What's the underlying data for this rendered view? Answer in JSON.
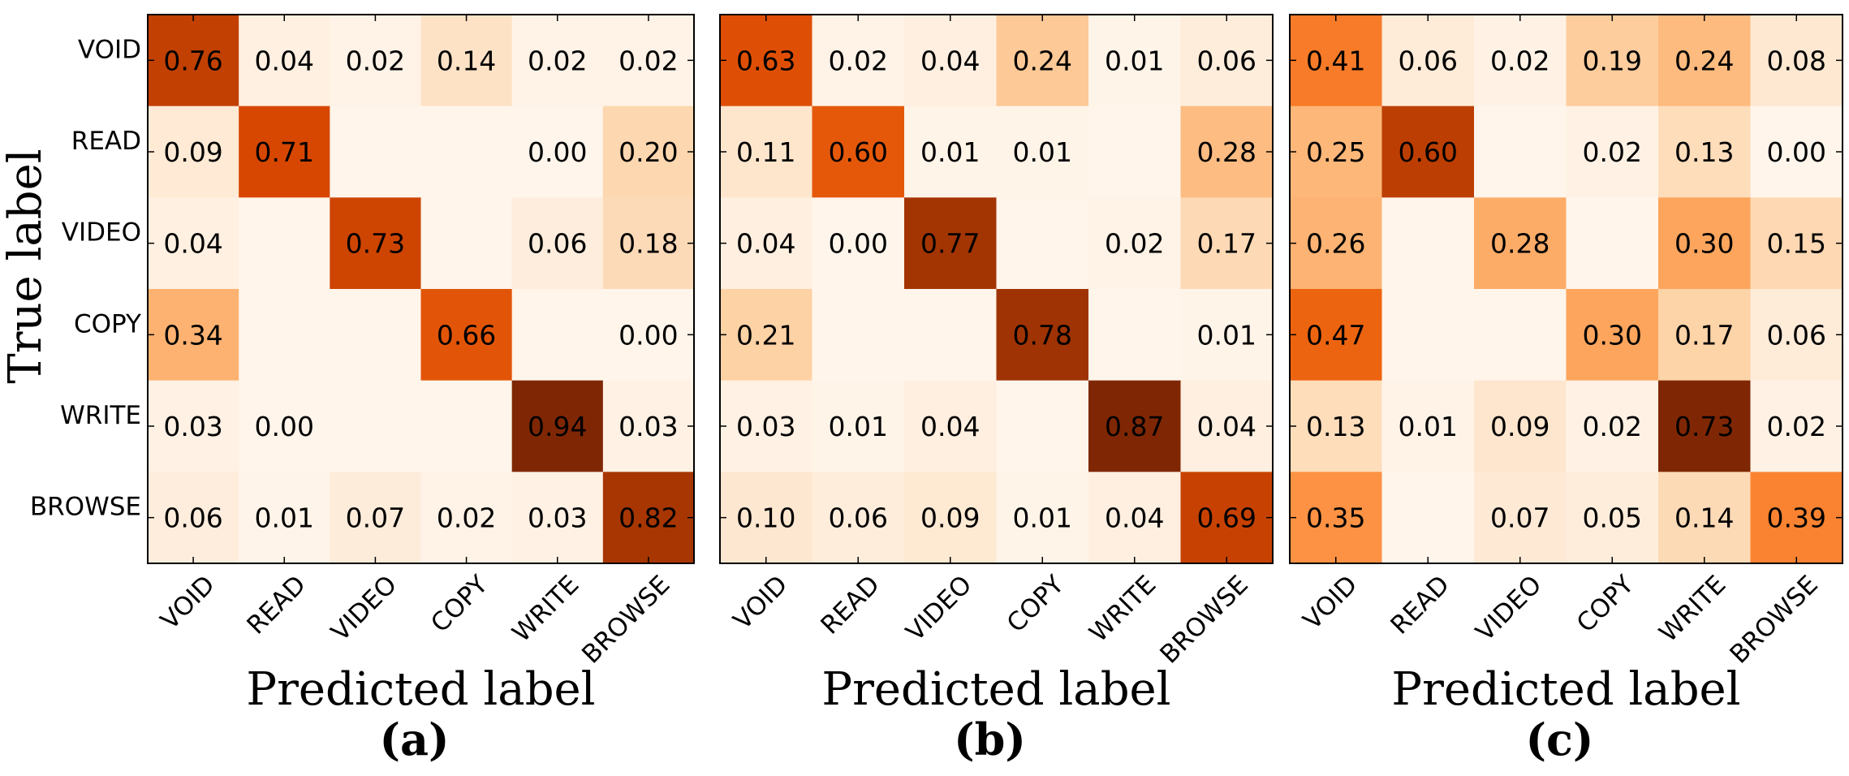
{
  "chart_data": [
    {
      "type": "heatmap",
      "panel_label": "(a)",
      "title": "",
      "xlabel": "Predicted label",
      "ylabel": "True label",
      "x_categories": [
        "VOID",
        "READ",
        "VIDEO",
        "COPY",
        "WRITE",
        "BROWSE"
      ],
      "y_categories": [
        "VOID",
        "READ",
        "VIDEO",
        "COPY",
        "WRITE",
        "BROWSE"
      ],
      "values": [
        [
          "0.76",
          "0.04",
          "0.02",
          "0.14",
          "0.02",
          "0.02"
        ],
        [
          "0.09",
          "0.71",
          "",
          "",
          "0.00",
          "0.20"
        ],
        [
          "0.04",
          "",
          "0.73",
          "",
          "0.06",
          "0.18"
        ],
        [
          "0.34",
          "",
          "",
          "0.66",
          "",
          "0.00"
        ],
        [
          "0.03",
          "0.00",
          "",
          "",
          "0.94",
          "0.03"
        ],
        [
          "0.06",
          "0.01",
          "0.07",
          "0.02",
          "0.03",
          "0.82"
        ]
      ],
      "colormap": "Oranges",
      "color_range": [
        0,
        0.94
      ]
    },
    {
      "type": "heatmap",
      "panel_label": "(b)",
      "title": "",
      "xlabel": "Predicted label",
      "ylabel": "",
      "x_categories": [
        "VOID",
        "READ",
        "VIDEO",
        "COPY",
        "WRITE",
        "BROWSE"
      ],
      "y_categories": [
        "VOID",
        "READ",
        "VIDEO",
        "COPY",
        "WRITE",
        "BROWSE"
      ],
      "values": [
        [
          "0.63",
          "0.02",
          "0.04",
          "0.24",
          "0.01",
          "0.06"
        ],
        [
          "0.11",
          "0.60",
          "0.01",
          "0.01",
          "",
          "0.28"
        ],
        [
          "0.04",
          "0.00",
          "0.77",
          "",
          "0.02",
          "0.17"
        ],
        [
          "0.21",
          "",
          "",
          "0.78",
          "",
          "0.01"
        ],
        [
          "0.03",
          "0.01",
          "0.04",
          "",
          "0.87",
          "0.04"
        ],
        [
          "0.10",
          "0.06",
          "0.09",
          "0.01",
          "0.04",
          "0.69"
        ]
      ],
      "colormap": "Oranges",
      "color_range": [
        0,
        0.87
      ]
    },
    {
      "type": "heatmap",
      "panel_label": "(c)",
      "title": "",
      "xlabel": "Predicted label",
      "ylabel": "",
      "x_categories": [
        "VOID",
        "READ",
        "VIDEO",
        "COPY",
        "WRITE",
        "BROWSE"
      ],
      "y_categories": [
        "VOID",
        "READ",
        "VIDEO",
        "COPY",
        "WRITE",
        "BROWSE"
      ],
      "values": [
        [
          "0.41",
          "0.06",
          "0.02",
          "0.19",
          "0.24",
          "0.08"
        ],
        [
          "0.25",
          "0.60",
          "",
          "0.02",
          "0.13",
          "0.00"
        ],
        [
          "0.26",
          "",
          "0.28",
          "",
          "0.30",
          "0.15"
        ],
        [
          "0.47",
          "",
          "",
          "0.30",
          "0.17",
          "0.06"
        ],
        [
          "0.13",
          "0.01",
          "0.09",
          "0.02",
          "0.73",
          "0.02"
        ],
        [
          "0.35",
          "",
          "0.07",
          "0.05",
          "0.14",
          "0.39"
        ]
      ],
      "colormap": "Oranges",
      "color_range": [
        0,
        0.73
      ]
    }
  ]
}
